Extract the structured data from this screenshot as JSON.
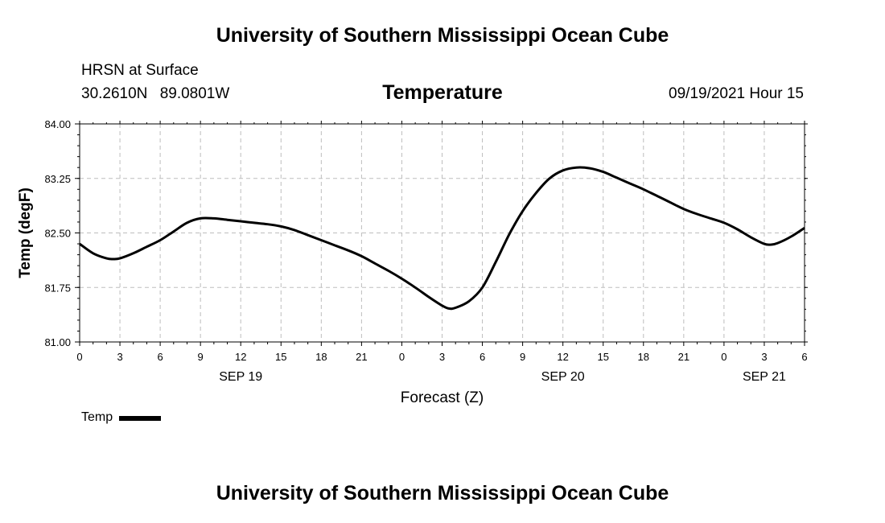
{
  "header": {
    "title": "University of Southern Mississippi Ocean Cube",
    "station": "HRSN at Surface",
    "lat": "30.2610N",
    "lon": "89.0801W",
    "datetime": "09/19/2021 Hour 15"
  },
  "footer": {
    "title": "University of Southern Mississippi Ocean Cube"
  },
  "chart_data": {
    "type": "line",
    "title": "Temperature",
    "xlabel": "Forecast (Z)",
    "ylabel": "Temp (degF)",
    "xlim": [
      0,
      54
    ],
    "ylim": [
      81.0,
      84.0
    ],
    "y_ticks": [
      "81.00",
      "81.75",
      "82.50",
      "83.25",
      "84.00"
    ],
    "y_tick_values": [
      81.0,
      81.75,
      82.5,
      83.25,
      84.0
    ],
    "x_tick_hours": [
      0,
      3,
      6,
      9,
      12,
      15,
      18,
      21,
      24,
      27,
      30,
      33,
      36,
      39,
      42,
      45,
      48,
      51,
      54
    ],
    "x_tick_labels": [
      "0",
      "3",
      "6",
      "9",
      "12",
      "15",
      "18",
      "21",
      "0",
      "3",
      "6",
      "9",
      "12",
      "15",
      "18",
      "21",
      "0",
      "3",
      "6"
    ],
    "date_labels": [
      {
        "hour": 12,
        "label": "SEP 19"
      },
      {
        "hour": 36,
        "label": "SEP 20"
      },
      {
        "hour": 51,
        "label": "SEP 21"
      }
    ],
    "grid": true,
    "legend_position": "bottom-left",
    "series": [
      {
        "name": "Temp",
        "color": "#000000",
        "x": [
          0,
          1,
          2,
          2.5,
          3,
          4,
          5,
          6,
          7,
          8,
          9,
          10,
          11,
          12,
          13,
          14,
          15,
          16,
          17,
          18,
          19,
          20,
          21,
          22,
          23,
          24,
          25,
          26,
          27,
          27.5,
          28,
          29,
          30,
          31,
          32,
          33,
          34,
          35,
          36,
          37,
          38,
          39,
          40,
          41,
          42,
          43,
          44,
          45,
          46,
          47,
          48,
          49,
          50,
          51,
          51.5,
          52,
          53,
          54
        ],
        "values": [
          82.35,
          82.22,
          82.15,
          82.14,
          82.15,
          82.22,
          82.31,
          82.4,
          82.52,
          82.64,
          82.7,
          82.7,
          82.68,
          82.66,
          82.64,
          82.62,
          82.59,
          82.54,
          82.47,
          82.4,
          82.33,
          82.26,
          82.18,
          82.08,
          81.98,
          81.87,
          81.75,
          81.62,
          81.5,
          81.46,
          81.47,
          81.56,
          81.75,
          82.1,
          82.48,
          82.8,
          83.05,
          83.25,
          83.36,
          83.4,
          83.39,
          83.34,
          83.26,
          83.18,
          83.1,
          83.01,
          82.92,
          82.83,
          82.76,
          82.7,
          82.64,
          82.55,
          82.44,
          82.35,
          82.34,
          82.36,
          82.45,
          82.57
        ]
      }
    ]
  }
}
